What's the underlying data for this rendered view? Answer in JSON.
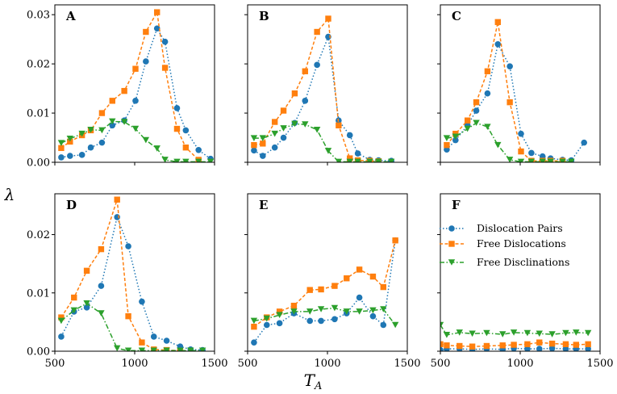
{
  "chart_data": {
    "type": "line",
    "ylabel": "λ",
    "xlabel": "T",
    "xlabel_subscript": "A",
    "xlim": [
      500,
      1500
    ],
    "xticks": [
      "500",
      "1000",
      "1500"
    ],
    "series_styles": [
      {
        "name": "Dislocation Pairs",
        "color": "#1f77b4",
        "marker": "circle",
        "dash": "dotted"
      },
      {
        "name": "Free Dislocations",
        "color": "#ff7f0e",
        "marker": "square",
        "dash": "dashed"
      },
      {
        "name": "Free Disclinations",
        "color": "#2ca02c",
        "marker": "triangle-down",
        "dash": "dashdot"
      }
    ],
    "legend": {
      "panel": "F",
      "placement": "upper-right"
    },
    "panels": [
      {
        "label": "A",
        "ylim": [
          0,
          0.032
        ],
        "yticks": [
          {
            "value": 0,
            "label": "0.00"
          },
          {
            "value": 0.01,
            "label": "0.01"
          },
          {
            "value": 0.02,
            "label": "0.02"
          },
          {
            "value": 0.03,
            "label": "0.03"
          }
        ],
        "series": [
          {
            "name": "Dislocation Pairs",
            "x": [
              540,
              595,
              670,
              725,
              795,
              860,
              935,
              1005,
              1070,
              1140,
              1190,
              1265,
              1320,
              1400,
              1475
            ],
            "y": [
              0.001,
              0.0013,
              0.0015,
              0.003,
              0.004,
              0.0075,
              0.0085,
              0.0125,
              0.0205,
              0.0272,
              0.0245,
              0.011,
              0.0065,
              0.0025,
              0.0007
            ]
          },
          {
            "name": "Free Dislocations",
            "x": [
              540,
              595,
              670,
              725,
              795,
              860,
              935,
              1005,
              1070,
              1140,
              1190,
              1265,
              1320,
              1400
            ],
            "y": [
              0.0029,
              0.0042,
              0.0055,
              0.0065,
              0.01,
              0.0125,
              0.0145,
              0.019,
              0.0265,
              0.0305,
              0.0192,
              0.0068,
              0.003,
              0.0005
            ]
          },
          {
            "name": "Free Disclinations",
            "x": [
              540,
              595,
              670,
              725,
              795,
              860,
              935,
              1005,
              1070,
              1140,
              1190,
              1265,
              1320,
              1400,
              1475
            ],
            "y": [
              0.0039,
              0.0048,
              0.0058,
              0.0066,
              0.0065,
              0.0083,
              0.0082,
              0.0068,
              0.0045,
              0.0028,
              0.0005,
              0.0001,
              0.0001,
              0.0001,
              0.0001
            ]
          }
        ]
      },
      {
        "label": "B",
        "ylim": [
          0,
          0.032
        ],
        "series": [
          {
            "name": "Dislocation Pairs",
            "x": [
              540,
              595,
              670,
              725,
              795,
              860,
              935,
              1005,
              1070,
              1140,
              1190,
              1265,
              1320,
              1400
            ],
            "y": [
              0.0024,
              0.0013,
              0.003,
              0.005,
              0.008,
              0.0125,
              0.0198,
              0.0255,
              0.0085,
              0.0055,
              0.0018,
              0.0005,
              0.0004,
              0.0003
            ]
          },
          {
            "name": "Free Dislocations",
            "x": [
              540,
              595,
              670,
              725,
              795,
              860,
              935,
              1005,
              1070,
              1140,
              1190,
              1265,
              1320
            ],
            "y": [
              0.0035,
              0.0038,
              0.0082,
              0.0105,
              0.014,
              0.0185,
              0.0265,
              0.0292,
              0.0075,
              0.0008,
              0.0004,
              0.0003,
              0.0002
            ]
          },
          {
            "name": "Free Disclinations",
            "x": [
              540,
              595,
              670,
              725,
              795,
              860,
              935,
              1005,
              1070,
              1140,
              1190,
              1265,
              1320,
              1400
            ],
            "y": [
              0.0049,
              0.0049,
              0.0058,
              0.0069,
              0.0078,
              0.0077,
              0.0066,
              0.0023,
              0.0001,
              0.0001,
              0.0001,
              0.0001,
              0.0001,
              0.0001
            ]
          }
        ]
      },
      {
        "label": "C",
        "ylim": [
          0,
          0.032
        ],
        "series": [
          {
            "name": "Dislocation Pairs",
            "x": [
              540,
              595,
              670,
              725,
              795,
              860,
              935,
              1005,
              1070,
              1140,
              1190,
              1265,
              1320,
              1400
            ],
            "y": [
              0.0026,
              0.0045,
              0.0075,
              0.0105,
              0.014,
              0.024,
              0.0195,
              0.0058,
              0.0019,
              0.0012,
              0.0008,
              0.0005,
              0.0004,
              0.004
            ]
          },
          {
            "name": "Free Dislocations",
            "x": [
              540,
              595,
              670,
              725,
              795,
              860,
              935,
              1005,
              1070,
              1140,
              1190,
              1265
            ],
            "y": [
              0.0035,
              0.0058,
              0.0085,
              0.0122,
              0.0185,
              0.0285,
              0.0122,
              0.0022,
              0.0003,
              0.0003,
              0.0003,
              0.0003
            ]
          },
          {
            "name": "Free Disclinations",
            "x": [
              540,
              595,
              670,
              725,
              795,
              860,
              935,
              1005,
              1070,
              1140,
              1190,
              1265,
              1320
            ],
            "y": [
              0.0049,
              0.0052,
              0.0068,
              0.008,
              0.0072,
              0.0035,
              0.0005,
              0.0001,
              0.0001,
              0.0001,
              0.0001,
              0.0001,
              0.0001
            ]
          }
        ]
      },
      {
        "label": "D",
        "ylim": [
          0,
          0.027
        ],
        "yticks": [
          {
            "value": 0,
            "label": "0.00"
          },
          {
            "value": 0.01,
            "label": "0.01"
          },
          {
            "value": 0.02,
            "label": "0.02"
          }
        ],
        "series": [
          {
            "name": "Dislocation Pairs",
            "x": [
              540,
              620,
              700,
              790,
              890,
              960,
              1045,
              1120,
              1200,
              1285,
              1350,
              1425
            ],
            "y": [
              0.0025,
              0.0068,
              0.0075,
              0.0112,
              0.023,
              0.018,
              0.0085,
              0.0025,
              0.0018,
              0.0008,
              0.0003,
              0.0002
            ]
          },
          {
            "name": "Free Dislocations",
            "x": [
              540,
              620,
              700,
              790,
              890,
              960,
              1045,
              1120,
              1200,
              1285
            ],
            "y": [
              0.0058,
              0.0092,
              0.0138,
              0.0175,
              0.026,
              0.006,
              0.0015,
              0.0003,
              0.0002,
              0.0001
            ]
          },
          {
            "name": "Free Disclinations",
            "x": [
              540,
              620,
              700,
              790,
              890,
              960,
              1045,
              1120,
              1200,
              1285,
              1350,
              1425
            ],
            "y": [
              0.0052,
              0.007,
              0.0082,
              0.0065,
              0.0005,
              0.0001,
              0.0001,
              0.0001,
              0.0001,
              0.0001,
              0.0001,
              0.0001
            ]
          }
        ]
      },
      {
        "label": "E",
        "ylim": [
          0,
          0.027
        ],
        "series": [
          {
            "name": "Dislocation Pairs",
            "x": [
              540,
              620,
              700,
              790,
              890,
              960,
              1045,
              1120,
              1200,
              1285,
              1350,
              1425
            ],
            "y": [
              0.0015,
              0.0045,
              0.0048,
              0.0065,
              0.0052,
              0.0052,
              0.0055,
              0.0065,
              0.0092,
              0.006,
              0.0045,
              0.019
            ]
          },
          {
            "name": "Free Dislocations",
            "x": [
              540,
              620,
              700,
              790,
              890,
              960,
              1045,
              1120,
              1200,
              1285,
              1350,
              1425
            ],
            "y": [
              0.0042,
              0.0058,
              0.0068,
              0.0078,
              0.0105,
              0.0106,
              0.0112,
              0.0125,
              0.014,
              0.0128,
              0.011,
              0.019
            ]
          },
          {
            "name": "Free Disclinations",
            "x": [
              540,
              620,
              700,
              790,
              890,
              960,
              1045,
              1120,
              1200,
              1285,
              1350,
              1425
            ],
            "y": [
              0.0052,
              0.0056,
              0.0062,
              0.0068,
              0.0068,
              0.0072,
              0.0074,
              0.0068,
              0.0068,
              0.007,
              0.0072,
              0.0045
            ]
          }
        ]
      },
      {
        "label": "F",
        "ylim": [
          0,
          0.027
        ],
        "series": [
          {
            "name": "Dislocation Pairs",
            "x": [
              500,
              540,
              620,
              700,
              790,
              890,
              960,
              1045,
              1120,
              1200,
              1285,
              1350,
              1425
            ],
            "y": [
              0.0002,
              0.0004,
              0.0004,
              0.0003,
              0.0004,
              0.0003,
              0.0005,
              0.0004,
              0.0004,
              0.0005,
              0.0004,
              0.0004,
              0.0004
            ]
          },
          {
            "name": "Free Dislocations",
            "x": [
              500,
              540,
              620,
              700,
              790,
              890,
              960,
              1045,
              1120,
              1200,
              1285,
              1350,
              1425
            ],
            "y": [
              0.0012,
              0.001,
              0.0009,
              0.0008,
              0.0009,
              0.001,
              0.0011,
              0.0012,
              0.0015,
              0.0013,
              0.0012,
              0.0011,
              0.0012
            ]
          },
          {
            "name": "Free Disclinations",
            "x": [
              500,
              540,
              620,
              700,
              790,
              890,
              960,
              1045,
              1120,
              1200,
              1285,
              1350,
              1425
            ],
            "y": [
              0.0045,
              0.0028,
              0.0032,
              0.003,
              0.0031,
              0.0029,
              0.0032,
              0.0031,
              0.003,
              0.0029,
              0.0031,
              0.0032,
              0.0031
            ]
          }
        ]
      }
    ]
  },
  "legend": {
    "items": [
      "Dislocation Pairs",
      "Free Dislocations",
      "Free Disclinations"
    ]
  }
}
